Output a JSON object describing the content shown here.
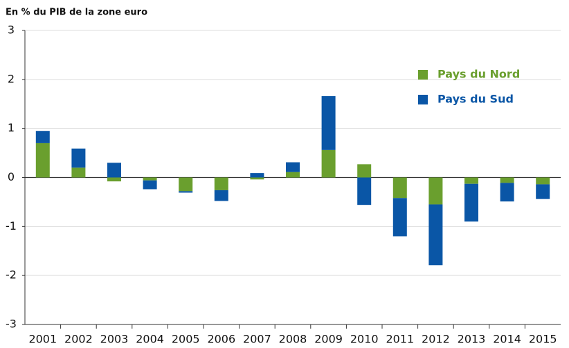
{
  "chart_data": {
    "type": "stacked_bar",
    "title": "En % du PIB de la zone euro",
    "categories": [
      "2001",
      "2002",
      "2003",
      "2004",
      "2005",
      "2006",
      "2007",
      "2008",
      "2009",
      "2010",
      "2011",
      "2012",
      "2013",
      "2014",
      "2015"
    ],
    "series": [
      {
        "name": "Pays du Nord",
        "color": "#6a9f2e",
        "values": [
          0.7,
          0.2,
          -0.08,
          -0.06,
          -0.28,
          -0.26,
          -0.04,
          0.11,
          0.56,
          0.27,
          -0.42,
          -0.55,
          -0.13,
          -0.11,
          -0.14
        ]
      },
      {
        "name": "Pays du Sud",
        "color": "#0a56a6",
        "values": [
          0.25,
          0.39,
          0.3,
          -0.18,
          -0.03,
          -0.22,
          0.09,
          0.2,
          1.1,
          -0.56,
          -0.78,
          -1.24,
          -0.77,
          -0.38,
          -0.3
        ]
      }
    ],
    "ylim": [
      -3,
      3
    ],
    "yticks": [
      -3,
      -2,
      -1,
      0,
      1,
      2,
      3
    ],
    "grid": true,
    "legend": "top-right"
  }
}
